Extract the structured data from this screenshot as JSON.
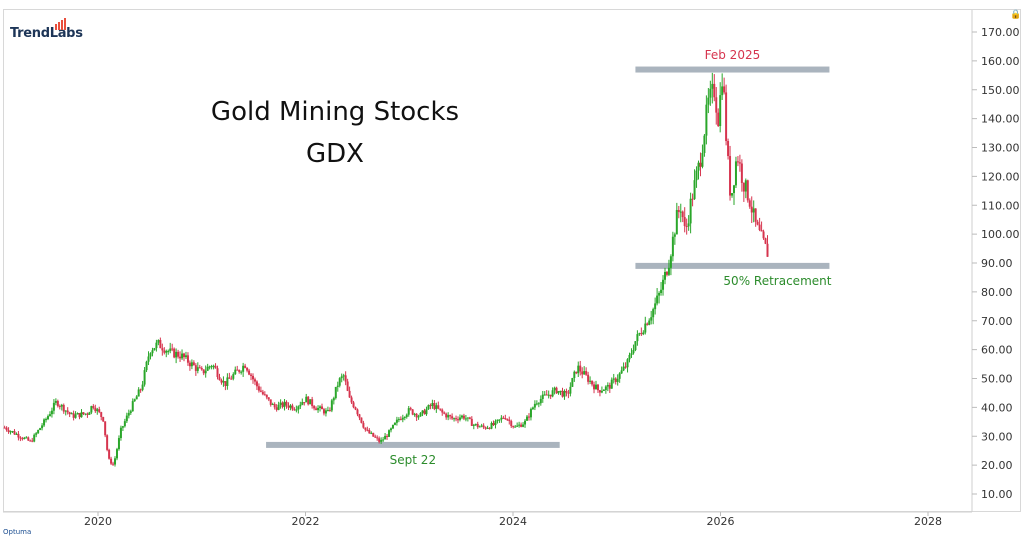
{
  "logo": {
    "text": "TrendLabs"
  },
  "lock_icon": "lock-icon",
  "footer_brand": "Optuma",
  "chart_data": {
    "type": "candlestick",
    "title": "Gold Mining Stocks",
    "subtitle": "GDX",
    "xlabel": "",
    "ylabel": "",
    "x_ticks": [
      "2020",
      "2022",
      "2024",
      "2026",
      "2028"
    ],
    "y_ticks": [
      "10.00",
      "20.00",
      "30.00",
      "40.00",
      "50.00",
      "60.00",
      "70.00",
      "80.00",
      "90.00",
      "100.00",
      "110.00",
      "120.00",
      "130.00",
      "140.00",
      "150.00",
      "160.00",
      "170.00"
    ],
    "ylim": [
      5,
      175
    ],
    "xlim": [
      2019.1,
      2029.1
    ],
    "grid": false,
    "colors": {
      "up": "#2aa62a",
      "down": "#d6344e",
      "level": "#aab4be"
    },
    "series": [
      {
        "values": [
          [
            2019.1,
            33
          ],
          [
            2019.2,
            31
          ],
          [
            2019.35,
            28
          ],
          [
            2019.5,
            36
          ],
          [
            2019.6,
            42
          ],
          [
            2019.75,
            37
          ],
          [
            2019.9,
            38
          ],
          [
            2019.95,
            41
          ],
          [
            2020.05,
            36
          ],
          [
            2020.1,
            22
          ],
          [
            2020.15,
            20
          ],
          [
            2020.22,
            32
          ],
          [
            2020.32,
            40
          ],
          [
            2020.42,
            47
          ],
          [
            2020.5,
            60
          ],
          [
            2020.58,
            62
          ],
          [
            2020.7,
            59
          ],
          [
            2020.8,
            58
          ],
          [
            2020.9,
            55
          ],
          [
            2021.0,
            52
          ],
          [
            2021.1,
            55
          ],
          [
            2021.22,
            48
          ],
          [
            2021.3,
            51
          ],
          [
            2021.42,
            55
          ],
          [
            2021.52,
            48
          ],
          [
            2021.6,
            44
          ],
          [
            2021.7,
            40
          ],
          [
            2021.8,
            41
          ],
          [
            2021.9,
            40
          ],
          [
            2022.0,
            43
          ],
          [
            2022.1,
            40
          ],
          [
            2022.22,
            38
          ],
          [
            2022.32,
            49
          ],
          [
            2022.37,
            51
          ],
          [
            2022.42,
            43
          ],
          [
            2022.48,
            40
          ],
          [
            2022.58,
            32
          ],
          [
            2022.65,
            30
          ],
          [
            2022.72,
            28
          ],
          [
            2022.8,
            31
          ],
          [
            2022.9,
            36
          ],
          [
            2023.0,
            39
          ],
          [
            2023.1,
            37
          ],
          [
            2023.22,
            41
          ],
          [
            2023.32,
            38
          ],
          [
            2023.42,
            36
          ],
          [
            2023.52,
            37
          ],
          [
            2023.62,
            34
          ],
          [
            2023.72,
            33
          ],
          [
            2023.82,
            34
          ],
          [
            2023.92,
            37
          ],
          [
            2024.02,
            33
          ],
          [
            2024.12,
            35
          ],
          [
            2024.22,
            42
          ],
          [
            2024.32,
            44
          ],
          [
            2024.42,
            46
          ],
          [
            2024.52,
            44
          ],
          [
            2024.62,
            54
          ],
          [
            2024.72,
            50
          ],
          [
            2024.82,
            46
          ],
          [
            2024.92,
            47
          ],
          [
            2025.02,
            51
          ],
          [
            2025.1,
            55
          ],
          [
            2025.18,
            63
          ],
          [
            2025.26,
            68
          ],
          [
            2025.34,
            73
          ],
          [
            2025.42,
            80
          ],
          [
            2025.5,
            90
          ],
          [
            2025.58,
            106
          ],
          [
            2025.62,
            110
          ],
          [
            2025.66,
            100
          ],
          [
            2025.72,
            112
          ],
          [
            2025.8,
            125
          ],
          [
            2025.88,
            145
          ],
          [
            2025.94,
            150
          ],
          [
            2025.98,
            140
          ],
          [
            2026.02,
            157
          ],
          [
            2026.06,
            130
          ],
          [
            2026.1,
            112
          ],
          [
            2026.16,
            128
          ],
          [
            2026.22,
            118
          ],
          [
            2026.28,
            112
          ],
          [
            2026.34,
            103
          ],
          [
            2026.4,
            98
          ],
          [
            2026.46,
            93
          ]
        ]
      }
    ],
    "annotations": [
      {
        "label": "Feb 2025",
        "color": "#d6344e",
        "level": 157,
        "x_from": 2025.18,
        "x_to": 2027.05
      },
      {
        "label": "50% Retracement",
        "color": "#2c8c2c",
        "level": 89,
        "x_from": 2025.18,
        "x_to": 2027.05
      },
      {
        "label": "Sept 22",
        "color": "#2c8c2c",
        "level": 27,
        "x_from": 2021.62,
        "x_to": 2024.45
      }
    ]
  }
}
